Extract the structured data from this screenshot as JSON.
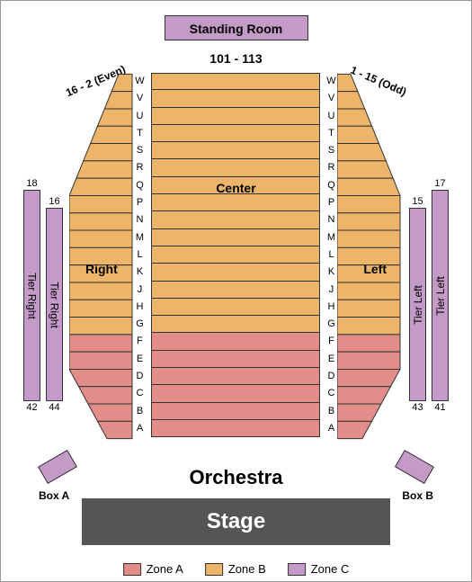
{
  "colors": {
    "zoneA": "#e18d8a",
    "zoneB": "#edb56a",
    "zoneC": "#c49ac8",
    "stage": "#555555",
    "rowLine": "#333333",
    "bg": "#ffffff"
  },
  "standing_room": {
    "label": "Standing Room"
  },
  "top_range": "101 - 113",
  "orchestra_label": "Orchestra",
  "stage_label": "Stage",
  "center_label": "Center",
  "wing_labels": {
    "right_section": "Right",
    "left_section": "Left"
  },
  "wing_top_notes": {
    "left": "16 - 2 (Even)",
    "right": "1 - 15 (Odd)"
  },
  "rows_desc": [
    "W",
    "V",
    "U",
    "T",
    "S",
    "R",
    "Q",
    "P",
    "N",
    "M",
    "L",
    "K",
    "J",
    "H",
    "G",
    "F",
    "E",
    "D",
    "C",
    "B",
    "A"
  ],
  "zoneA_rows": [
    "F",
    "E",
    "D",
    "C",
    "B",
    "A"
  ],
  "tiers": {
    "outer_left": {
      "label": "Tier Right",
      "top_num": "18",
      "bot_num": "42"
    },
    "inner_left": {
      "label": "Tier Right",
      "top_num": "16",
      "bot_num": "44"
    },
    "outer_right": {
      "label": "Tier Left",
      "top_num": "17",
      "bot_num": "41"
    },
    "inner_right": {
      "label": "Tier Left",
      "top_num": "15",
      "bot_num": "43"
    }
  },
  "boxes": {
    "left": "Box A",
    "right": "Box B"
  },
  "legend": [
    {
      "label": "Zone A",
      "color_key": "zoneA"
    },
    {
      "label": "Zone B",
      "color_key": "zoneB"
    },
    {
      "label": "Zone C",
      "color_key": "zoneC"
    }
  ],
  "wing_shape": {
    "width": 70,
    "rows": 21,
    "row_h": 19.3,
    "top_inset": 55,
    "zoneA_start_index": 15,
    "bottom_cut_index": 17
  }
}
